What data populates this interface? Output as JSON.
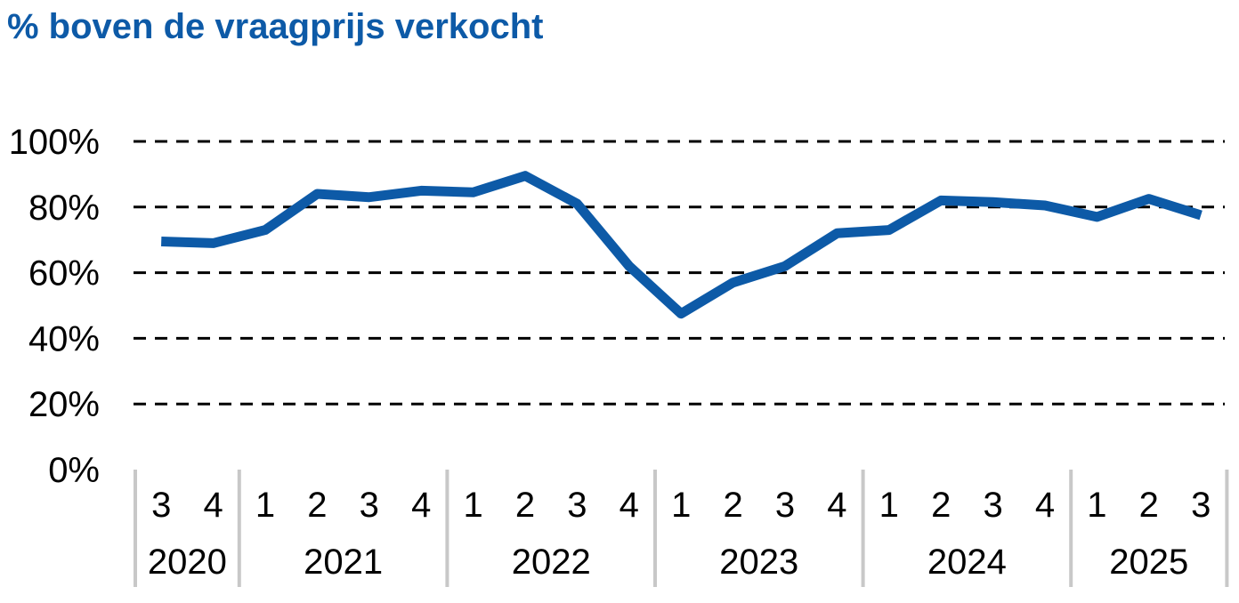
{
  "chart_data": {
    "type": "line",
    "title": "% boven de vraagprijs verkocht",
    "xlabel": "",
    "ylabel": "",
    "ylim": [
      0,
      100
    ],
    "yticks": [
      "0%",
      "20%",
      "40%",
      "60%",
      "80%",
      "100%"
    ],
    "grid": true,
    "legend": "none",
    "color": "#0d5aa7",
    "categories": [
      {
        "year": "2020",
        "quarter": "3"
      },
      {
        "year": "2020",
        "quarter": "4"
      },
      {
        "year": "2021",
        "quarter": "1"
      },
      {
        "year": "2021",
        "quarter": "2"
      },
      {
        "year": "2021",
        "quarter": "3"
      },
      {
        "year": "2021",
        "quarter": "4"
      },
      {
        "year": "2022",
        "quarter": "1"
      },
      {
        "year": "2022",
        "quarter": "2"
      },
      {
        "year": "2022",
        "quarter": "3"
      },
      {
        "year": "2022",
        "quarter": "4"
      },
      {
        "year": "2023",
        "quarter": "1"
      },
      {
        "year": "2023",
        "quarter": "2"
      },
      {
        "year": "2023",
        "quarter": "3"
      },
      {
        "year": "2023",
        "quarter": "4"
      },
      {
        "year": "2024",
        "quarter": "1"
      },
      {
        "year": "2024",
        "quarter": "2"
      },
      {
        "year": "2024",
        "quarter": "3"
      },
      {
        "year": "2024",
        "quarter": "4"
      },
      {
        "year": "2025",
        "quarter": "1"
      },
      {
        "year": "2025",
        "quarter": "2"
      },
      {
        "year": "2025",
        "quarter": "3"
      }
    ],
    "years": [
      "2020",
      "2021",
      "2022",
      "2023",
      "2024",
      "2025"
    ],
    "series": [
      {
        "values": [
          69.5,
          69,
          73,
          84,
          83,
          85,
          84.5,
          89.5,
          81,
          62,
          47.5,
          57,
          62,
          72,
          73,
          82,
          81.5,
          80.5,
          77,
          82.5,
          77.5
        ]
      }
    ]
  }
}
